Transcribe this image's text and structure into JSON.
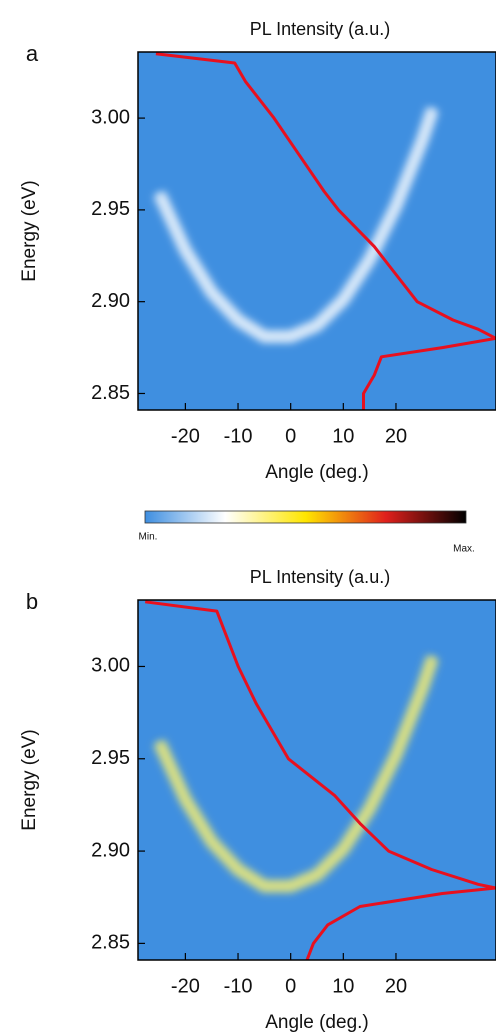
{
  "figure": {
    "colorbar": {
      "colors": [
        "#3e8ee0",
        "#ffffff",
        "#ffe600",
        "#e0201c",
        "#000000"
      ],
      "min_label": "Min.",
      "max_label": "Max."
    }
  },
  "chart_data": [
    {
      "type": "dispersion",
      "label": "a",
      "title": "PL Intensity (a.u.)",
      "title_color": "#e8202a",
      "x_label": "Angle (deg.)",
      "y_label": "Energy (eV)",
      "background": "#3f8fe0",
      "xlim": [
        -29,
        39
      ],
      "xticks": [
        -20,
        -10,
        0,
        10,
        20
      ],
      "ylim": [
        2.841,
        3.036
      ],
      "yticks": [
        2.85,
        {
          "value": 2.9,
          "label": "2.90"
        },
        2.95,
        {
          "value": 3,
          "label": "3.00"
        }
      ],
      "x": [
        -25,
        -20,
        -15,
        -10,
        -5,
        0,
        5,
        10,
        15,
        20,
        25,
        27
      ],
      "series": [
        {
          "color": "#ffffff",
          "values": [
            2.959,
            2.928,
            2.905,
            2.89,
            2.881,
            2.881,
            2.887,
            2.901,
            2.923,
            2.952,
            2.988,
            3.005
          ]
        }
      ],
      "spectrum": {
        "color": "#e8101e",
        "intensity_lim": [
          0,
          1
        ],
        "energy": [
          3.035,
          3.03,
          3.02,
          3.0,
          2.98,
          2.96,
          2.95,
          2.93,
          2.92,
          2.9,
          2.89,
          2.885,
          2.88,
          2.875,
          2.87,
          2.86,
          2.85,
          2.84
        ],
        "intensity": [
          0.05,
          0.27,
          0.3,
          0.38,
          0.45,
          0.52,
          0.56,
          0.66,
          0.7,
          0.78,
          0.88,
          0.95,
          1.0,
          0.85,
          0.68,
          0.66,
          0.63,
          0.63
        ]
      }
    },
    {
      "type": "dispersion",
      "label": "b",
      "title": "PL Intensity (a.u.)",
      "title_color": "#e8202a",
      "x_label": "Angle (deg.)",
      "y_label": "Energy (eV)",
      "background": "#3f8fe0",
      "xlim": [
        -29,
        39
      ],
      "xticks": [
        -20,
        -10,
        0,
        10,
        20
      ],
      "ylim": [
        2.841,
        3.036
      ],
      "yticks": [
        2.85,
        {
          "value": 2.9,
          "label": "2.90"
        },
        2.95,
        {
          "value": 3,
          "label": "3.00"
        }
      ],
      "x": [
        -25,
        -20,
        -15,
        -10,
        -5,
        0,
        5,
        10,
        15,
        20,
        25,
        27
      ],
      "series": [
        {
          "color": "#fff36b",
          "values": [
            2.959,
            2.928,
            2.905,
            2.89,
            2.881,
            2.881,
            2.887,
            2.901,
            2.923,
            2.952,
            2.988,
            3.005
          ]
        }
      ],
      "spectrum": {
        "color": "#e8101e",
        "intensity_lim": [
          0,
          1
        ],
        "energy": [
          3.035,
          3.03,
          3.0,
          2.98,
          2.95,
          2.93,
          2.915,
          2.9,
          2.89,
          2.882,
          2.88,
          2.877,
          2.87,
          2.86,
          2.85,
          2.84
        ],
        "intensity": [
          0.02,
          0.22,
          0.28,
          0.33,
          0.42,
          0.55,
          0.62,
          0.7,
          0.82,
          0.95,
          1.0,
          0.85,
          0.62,
          0.53,
          0.49,
          0.47
        ]
      }
    }
  ]
}
